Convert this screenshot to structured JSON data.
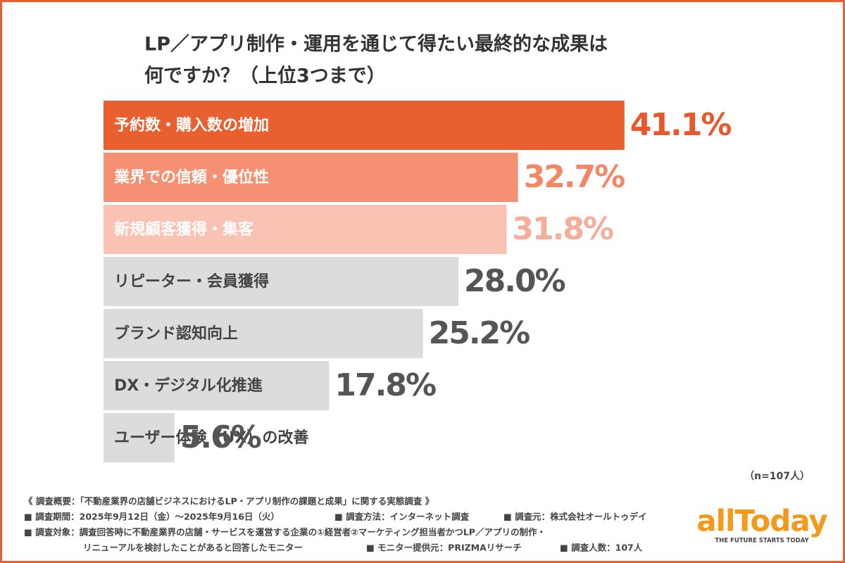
{
  "chart_data": {
    "type": "hbar",
    "title": [
      "LP／アプリ制作・運用を通じて得たい最終的な成果は",
      "何ですか？（上位3つまで）"
    ],
    "categories": [
      "予約数・購入数の増加",
      "業界での信頼・優位性",
      "新規顧客獲得・集客",
      "リピーター・会員獲得",
      "ブランド認知向上",
      "DX・デジタル化推進",
      "ユーザー体験（UX）の改善"
    ],
    "values": [
      41.1,
      32.7,
      31.8,
      28.0,
      25.2,
      17.8,
      5.6
    ],
    "value_labels": [
      "41.1%",
      "32.7%",
      "31.8%",
      "28.0%",
      "25.2%",
      "17.8%",
      "5.6%"
    ],
    "colors": [
      "#e8602f",
      "#f59172",
      "#f9c2b3",
      "#dcdcdc",
      "#dcdcdc",
      "#dcdcdc",
      "#dcdcdc"
    ],
    "text_colors": [
      "#ffffff",
      "#ffffff",
      "#ffffff",
      "#444444",
      "#444444",
      "#444444",
      "#444444"
    ],
    "label_colors": [
      "#e8582a",
      "#f28864",
      "#f6ae9a",
      "#555555",
      "#555555",
      "#555555",
      "#555555"
    ],
    "note": "（n=107人）"
  },
  "footer": [
    "《 調査概要：「不動産業界の店舗ビジネスにおけるLP・アプリ制作の課題と成果」に関する実態調査 》",
    "■ 調査期間：2025年9月12日（金）〜2025年9月16日（火）",
    "■ 調査方法：インターネット調査",
    "■ 調査元：株式会社オールトゥデイ",
    "■ 調査対象：調査回答時に不動産業界の店舗・サービスを運営する企業の①経営者②マーケティング担当者かつLP／アプリの制作・",
    "リニューアルを検討したことがあると回答したモニター",
    "■ モニター提供元：PRIZMAリサーチ",
    "■ 調査人数：107人"
  ],
  "logo": {
    "name": "allToday",
    "tagline": "THE FUTURE STARTS TODAY"
  }
}
